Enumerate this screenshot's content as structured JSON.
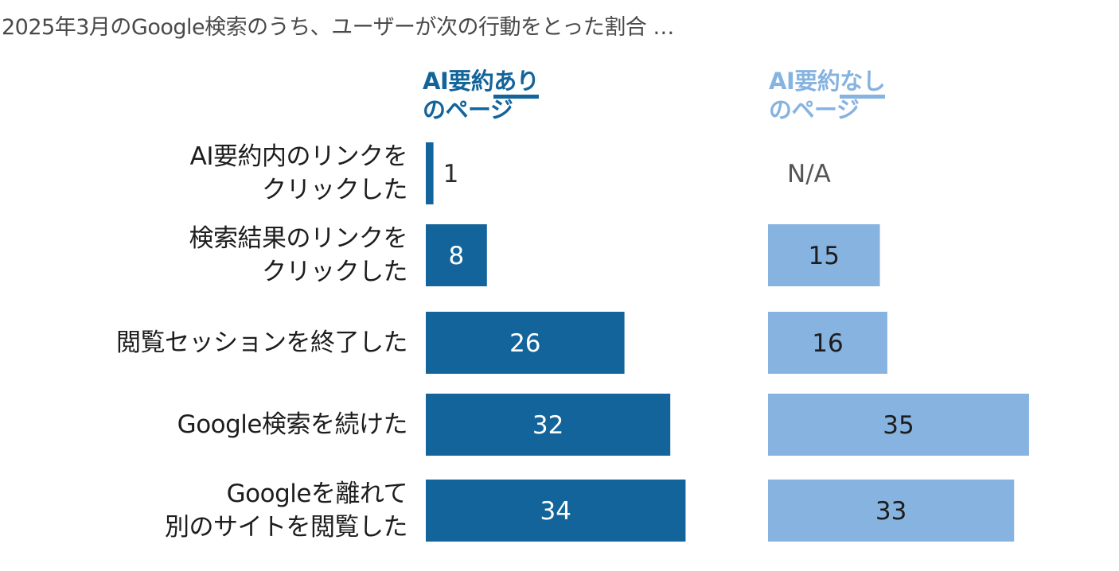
{
  "title": "2025年3月のGoogle検索のうち、ユーザーが次の行動をとった割合 …",
  "colors": {
    "with_summary": "#12649a",
    "without_summary": "#86b3e0",
    "label_text": "#1d1d1d",
    "na_text": "#555555"
  },
  "chart_data": {
    "type": "bar",
    "orientation": "horizontal",
    "title": "2025年3月のGoogle検索のうち、ユーザーが次の行動をとった割合 …",
    "unit": "%",
    "categories": [
      [
        "AI要約内のリンクを",
        "クリックした"
      ],
      [
        "検索結果のリンクを",
        "クリックした"
      ],
      [
        "閲覧セッションを終了した"
      ],
      [
        "Google検索を続けた"
      ],
      [
        "Googleを離れて",
        "別のサイトを閲覧した"
      ]
    ],
    "series": [
      {
        "name_parts": [
          "AI要約",
          "あり",
          "のページ"
        ],
        "name": "AI要約ありのページ",
        "color": "#12649a",
        "values": [
          1,
          8,
          26,
          32,
          34
        ],
        "labels": [
          "1",
          "8",
          "26",
          "32",
          "34"
        ]
      },
      {
        "name_parts": [
          "AI要約",
          "なし",
          "のページ"
        ],
        "name": "AI要約なしのページ",
        "color": "#86b3e0",
        "values": [
          null,
          15,
          16,
          35,
          33
        ],
        "labels": [
          "N/A",
          "15",
          "16",
          "35",
          "33"
        ]
      }
    ],
    "xlim": [
      0,
      35
    ]
  }
}
